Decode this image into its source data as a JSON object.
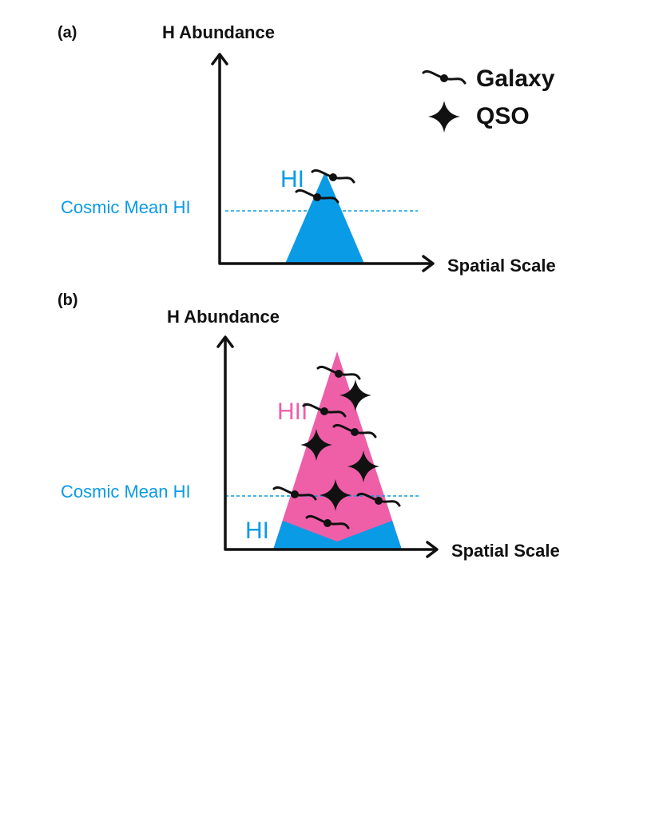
{
  "panel_a": {
    "panel_label": "(a)",
    "y_axis_label": "H Abundance",
    "x_axis_label": "Spatial Scale",
    "mean_label": "Cosmic Mean HI",
    "hi_label": "HI"
  },
  "panel_b": {
    "panel_label": "(b)",
    "y_axis_label": "H Abundance",
    "x_axis_label": "Spatial Scale",
    "mean_label": "Cosmic Mean HI",
    "hi_label": "HI",
    "hii_label": "HII"
  },
  "legend": {
    "galaxy_label": "Galaxy",
    "qso_label": "QSO",
    "galaxy_icon": "galaxy-icon",
    "qso_icon": "four-point-star-icon"
  },
  "colors": {
    "hi_blue": "#0a9be6",
    "hii_pink": "#ee5fa8",
    "axis_black": "#111111"
  }
}
